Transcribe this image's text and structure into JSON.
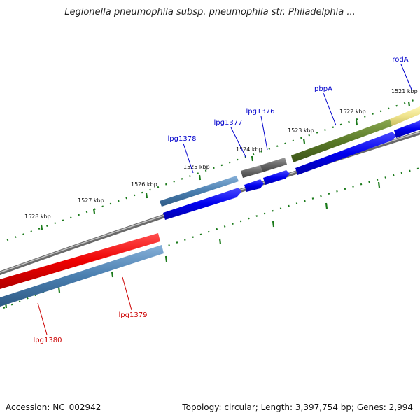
{
  "header": {
    "title": "Legionella pneumophila subsp. pneumophila str. Philadelphia ..."
  },
  "footer": {
    "accession": "Accession: NC_002942",
    "topology": "Topology: circular; Length: 3,397,754 bp; Genes: 2,994"
  },
  "colors": {
    "backbone": "#8a8a8a",
    "tick": "#1a7a1a",
    "forward_cds": "#0000ee",
    "label_forward": "#0000cc",
    "label_reverse": "#cc0000",
    "rrna": "#ee0000",
    "gene_steel": "#4a7fb0",
    "gene_grey": "#6a6a6a",
    "gene_olive": "#5a7a28",
    "gene_pale": "#e8e08a"
  },
  "ticks": [
    {
      "label": "1528 kbp"
    },
    {
      "label": "1527 kbp"
    },
    {
      "label": "1526 kbp"
    },
    {
      "label": "1525 kbp"
    },
    {
      "label": "1524 kbp"
    },
    {
      "label": "1523 kbp"
    },
    {
      "label": "1522 kbp"
    },
    {
      "label": "1521 kbp"
    }
  ],
  "genes": [
    {
      "name": "rodA",
      "strand": "forward"
    },
    {
      "name": "pbpA",
      "strand": "forward"
    },
    {
      "name": "lpg1376",
      "strand": "forward"
    },
    {
      "name": "lpg1377",
      "strand": "forward"
    },
    {
      "name": "lpg1378",
      "strand": "forward"
    },
    {
      "name": "lpg1379",
      "strand": "reverse"
    },
    {
      "name": "lpg1380",
      "strand": "reverse"
    }
  ]
}
